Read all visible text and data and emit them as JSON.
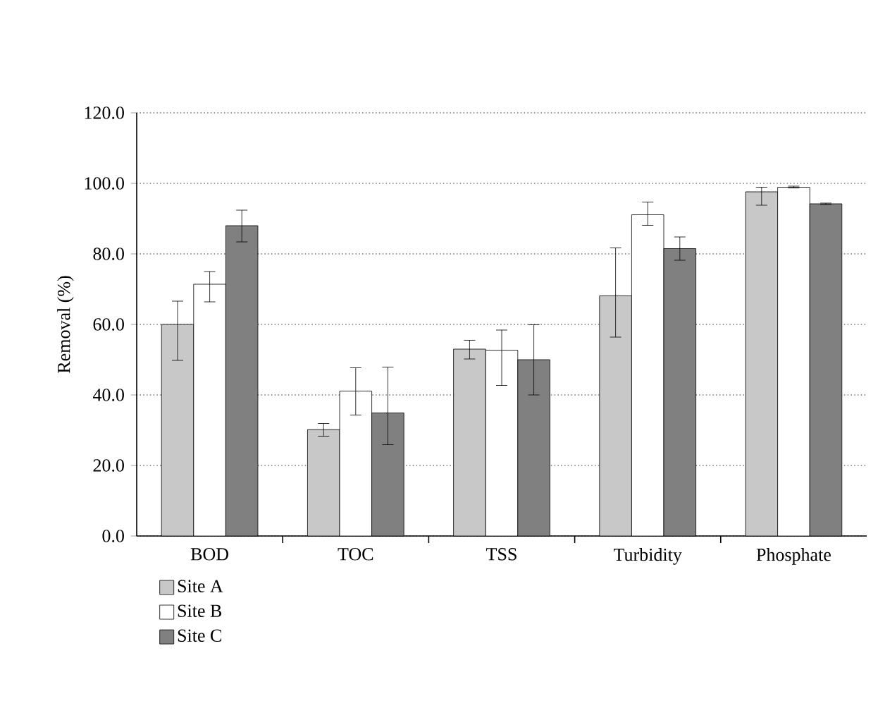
{
  "chart_data": {
    "type": "bar",
    "ylabel": "Removal (%)",
    "categories": [
      "BOD",
      "TOC",
      "TSS",
      "Turbidity",
      "Phosphate"
    ],
    "series": [
      {
        "name": "Site A",
        "color": "#c8c8c8",
        "values": [
          60.0,
          30.2,
          53.0,
          68.1,
          97.6
        ],
        "errors": [
          [
            49.8,
            66.6
          ],
          [
            28.3,
            31.9
          ],
          [
            50.2,
            55.5
          ],
          [
            56.4,
            81.7
          ],
          [
            93.8,
            98.9
          ]
        ]
      },
      {
        "name": "Site B",
        "color": "#ffffff",
        "values": [
          71.4,
          41.1,
          52.7,
          91.1,
          98.9
        ],
        "errors": [
          [
            66.4,
            75.0
          ],
          [
            34.3,
            47.7
          ],
          [
            42.7,
            58.4
          ],
          [
            88.1,
            94.7
          ],
          [
            98.7,
            99.2
          ]
        ]
      },
      {
        "name": "Site C",
        "color": "#808080",
        "values": [
          88.0,
          34.9,
          50.0,
          81.5,
          94.2
        ],
        "errors": [
          [
            83.4,
            92.4
          ],
          [
            25.9,
            47.9
          ],
          [
            40.0,
            59.9
          ],
          [
            78.2,
            84.8
          ],
          [
            94.0,
            94.4
          ]
        ]
      }
    ],
    "ylim": [
      0,
      120
    ],
    "yticks": [
      {
        "value": 0,
        "label": "0.0"
      },
      {
        "value": 20,
        "label": "20.0"
      },
      {
        "value": 40,
        "label": "40.0"
      },
      {
        "value": 60,
        "label": "60.0"
      },
      {
        "value": 80,
        "label": "80.0"
      },
      {
        "value": 100,
        "label": "100.0"
      },
      {
        "value": 120,
        "label": "120.0"
      }
    ],
    "grid": "y",
    "legend": "bottom left"
  }
}
